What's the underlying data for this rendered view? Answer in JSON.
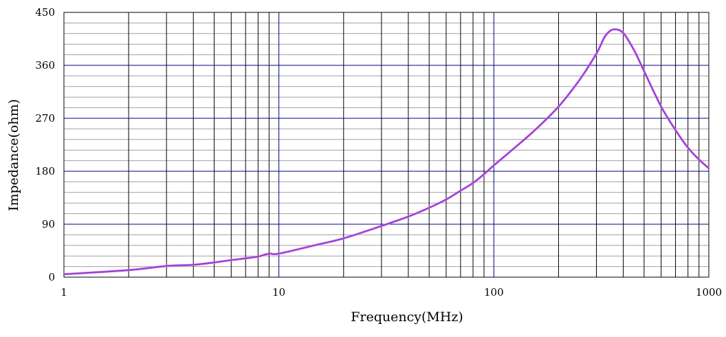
{
  "chart_data": {
    "type": "line",
    "xlabel": "Frequency(MHz)",
    "ylabel": "Impedance(ohm)",
    "x_scale": "log",
    "xlim": [
      1,
      1000
    ],
    "ylim": [
      0,
      450
    ],
    "x_major_ticks": [
      1,
      10,
      100,
      1000
    ],
    "x_tick_labels": [
      "1",
      "10",
      "100",
      "1000"
    ],
    "y_major_ticks": [
      0,
      90,
      180,
      270,
      360,
      450
    ],
    "y_tick_labels": [
      "0",
      "90",
      "180",
      "270",
      "360",
      "450"
    ],
    "y_minor_step": 18,
    "grid": true,
    "colors": {
      "major_grid": "#000080",
      "minor_vertical_grid": "#000000",
      "minor_horizontal_grid": "#a0a0a0",
      "curve_outer": "#e060e0",
      "curve_inner": "#4040d0"
    },
    "series": [
      {
        "x": [
          1,
          2,
          3,
          4,
          5,
          6,
          7,
          8,
          9,
          10,
          15,
          20,
          30,
          40,
          50,
          60,
          70,
          80,
          90,
          100,
          150,
          200,
          250,
          300,
          330,
          360,
          400,
          450,
          500,
          600,
          700,
          800,
          900,
          1000
        ],
        "values": [
          5,
          12,
          19,
          21,
          25,
          29,
          32,
          35,
          40,
          40,
          55,
          66,
          87,
          103,
          118,
          132,
          147,
          160,
          175,
          190,
          245,
          290,
          335,
          380,
          410,
          421,
          415,
          385,
          350,
          290,
          250,
          220,
          200,
          185
        ]
      }
    ]
  }
}
